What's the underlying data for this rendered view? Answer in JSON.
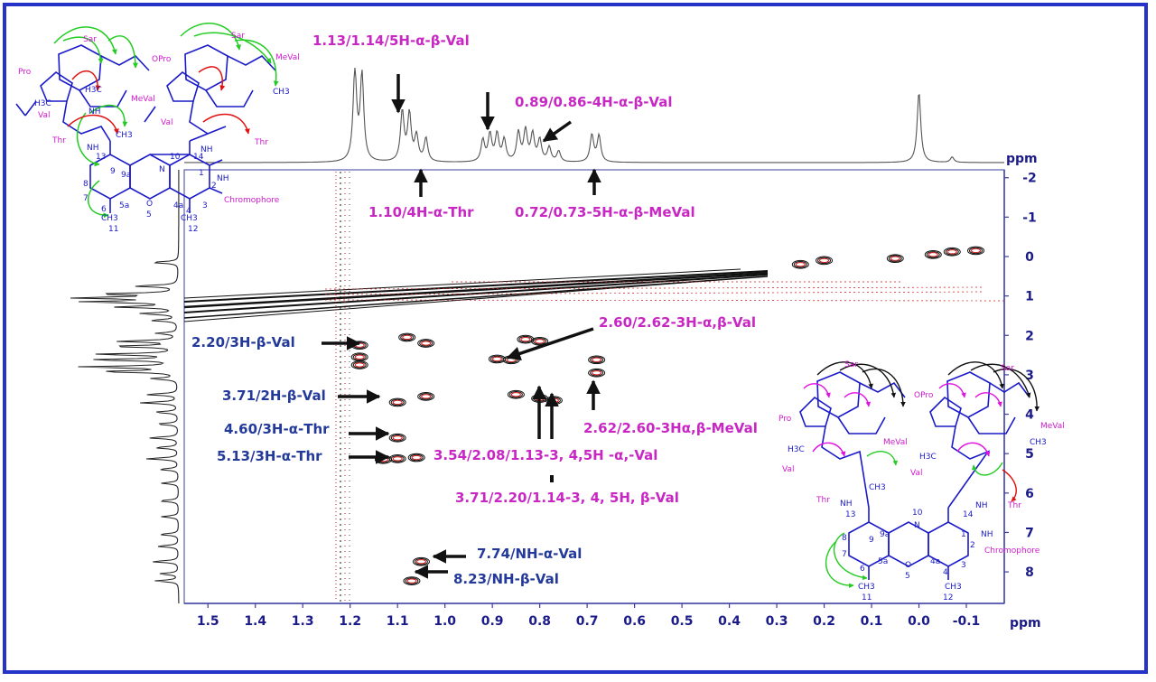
{
  "chart_data": {
    "type": "2d-nmr-contour",
    "x_unit": "ppm",
    "y_unit": "ppm",
    "x_range": [
      1.55,
      -0.18
    ],
    "y_range": [
      -2.2,
      8.8
    ],
    "x_ticks": [
      "1.5",
      "1.4",
      "1.3",
      "1.2",
      "1.1",
      "1.0",
      "0.9",
      "0.8",
      "0.7",
      "0.6",
      "0.5",
      "0.4",
      "0.3",
      "0.2",
      "0.1",
      "0.0",
      "-0.1"
    ],
    "x_tick_values": [
      1.5,
      1.4,
      1.3,
      1.2,
      1.1,
      1.0,
      0.9,
      0.8,
      0.7,
      0.6,
      0.5,
      0.4,
      0.3,
      0.2,
      0.1,
      0.0,
      -0.1
    ],
    "y_ticks": [
      "-2",
      "-1",
      "0",
      "1",
      "2",
      "3",
      "4",
      "5",
      "6",
      "7",
      "8"
    ],
    "y_tick_values": [
      -2,
      -1,
      0,
      1,
      2,
      3,
      4,
      5,
      6,
      7,
      8
    ],
    "cross_peaks": [
      {
        "x": 1.18,
        "y": 2.25
      },
      {
        "x": 1.18,
        "y": 2.55
      },
      {
        "x": 1.18,
        "y": 2.75
      },
      {
        "x": 1.1,
        "y": 3.7
      },
      {
        "x": 1.04,
        "y": 3.55
      },
      {
        "x": 1.1,
        "y": 4.6
      },
      {
        "x": 1.1,
        "y": 5.13
      },
      {
        "x": 1.06,
        "y": 5.1
      },
      {
        "x": 1.13,
        "y": 5.15
      },
      {
        "x": 1.05,
        "y": 7.74
      },
      {
        "x": 1.07,
        "y": 8.23
      },
      {
        "x": 1.08,
        "y": 2.05
      },
      {
        "x": 1.04,
        "y": 2.2
      },
      {
        "x": 0.89,
        "y": 2.6
      },
      {
        "x": 0.86,
        "y": 2.62
      },
      {
        "x": 0.85,
        "y": 3.5
      },
      {
        "x": 0.8,
        "y": 3.6
      },
      {
        "x": 0.77,
        "y": 3.65
      },
      {
        "x": 0.83,
        "y": 2.1
      },
      {
        "x": 0.8,
        "y": 2.15
      },
      {
        "x": 0.68,
        "y": 2.62
      },
      {
        "x": 0.68,
        "y": 2.95
      },
      {
        "x": 0.25,
        "y": 0.2
      },
      {
        "x": 0.2,
        "y": 0.1
      },
      {
        "x": 0.05,
        "y": 0.05
      },
      {
        "x": -0.03,
        "y": -0.05
      },
      {
        "x": -0.07,
        "y": -0.12
      },
      {
        "x": -0.12,
        "y": -0.15
      }
    ],
    "top_projection_peaks": [
      {
        "x": 1.19,
        "h": 1.0
      },
      {
        "x": 1.175,
        "h": 0.95
      },
      {
        "x": 1.09,
        "h": 0.55
      },
      {
        "x": 1.075,
        "h": 0.52
      },
      {
        "x": 1.06,
        "h": 0.28
      },
      {
        "x": 1.04,
        "h": 0.26
      },
      {
        "x": 0.92,
        "h": 0.24
      },
      {
        "x": 0.905,
        "h": 0.3
      },
      {
        "x": 0.89,
        "h": 0.3
      },
      {
        "x": 0.875,
        "h": 0.24
      },
      {
        "x": 0.845,
        "h": 0.32
      },
      {
        "x": 0.83,
        "h": 0.34
      },
      {
        "x": 0.815,
        "h": 0.3
      },
      {
        "x": 0.8,
        "h": 0.24
      },
      {
        "x": 0.78,
        "h": 0.16
      },
      {
        "x": 0.76,
        "h": 0.12
      },
      {
        "x": 0.69,
        "h": 0.3
      },
      {
        "x": 0.675,
        "h": 0.29
      },
      {
        "x": 0.0,
        "h": 0.78
      },
      {
        "x": -0.07,
        "h": 0.06
      }
    ],
    "left_projection_peaks": [
      {
        "y": 0.15,
        "h": 0.25
      },
      {
        "y": 0.75,
        "h": 0.4
      },
      {
        "y": 0.95,
        "h": 0.7
      },
      {
        "y": 1.05,
        "h": 0.95
      },
      {
        "y": 1.15,
        "h": 0.85
      },
      {
        "y": 1.28,
        "h": 0.55
      },
      {
        "y": 1.45,
        "h": 0.35
      },
      {
        "y": 1.62,
        "h": 0.25
      },
      {
        "y": 1.95,
        "h": 0.2
      },
      {
        "y": 2.15,
        "h": 0.55
      },
      {
        "y": 2.28,
        "h": 0.6
      },
      {
        "y": 2.48,
        "h": 0.75
      },
      {
        "y": 2.62,
        "h": 0.8
      },
      {
        "y": 2.8,
        "h": 0.9
      },
      {
        "y": 2.92,
        "h": 0.7
      },
      {
        "y": 3.1,
        "h": 0.25
      },
      {
        "y": 3.5,
        "h": 0.3
      },
      {
        "y": 3.71,
        "h": 0.35
      },
      {
        "y": 3.95,
        "h": 0.22
      },
      {
        "y": 4.25,
        "h": 0.2
      },
      {
        "y": 4.6,
        "h": 0.28
      },
      {
        "y": 4.85,
        "h": 0.22
      },
      {
        "y": 5.13,
        "h": 0.3
      },
      {
        "y": 5.4,
        "h": 0.18
      },
      {
        "y": 5.75,
        "h": 0.16
      },
      {
        "y": 6.2,
        "h": 0.18
      },
      {
        "y": 6.6,
        "h": 0.16
      },
      {
        "y": 7.05,
        "h": 0.18
      },
      {
        "y": 7.35,
        "h": 0.2
      },
      {
        "y": 7.74,
        "h": 0.25
      },
      {
        "y": 8.05,
        "h": 0.18
      },
      {
        "y": 8.23,
        "h": 0.22
      }
    ],
    "annotations": [
      {
        "text": "1.13/1.14/5H-α-β-Val",
        "color": "magenta"
      },
      {
        "text": "0.89/0.86-4H-α-β-Val",
        "color": "magenta"
      },
      {
        "text": "1.10/4H-α-Thr",
        "color": "magenta"
      },
      {
        "text": "0.72/0.73-5H-α-β-MeVal",
        "color": "magenta"
      },
      {
        "text": "2.60/2.62-3H-α,β-Val",
        "color": "magenta"
      },
      {
        "text": "2.20/3H-β-Val",
        "color": "blue"
      },
      {
        "text": "3.71/2H-β-Val",
        "color": "blue"
      },
      {
        "text": "4.60/3H-α-Thr",
        "color": "blue"
      },
      {
        "text": "5.13/3H-α-Thr",
        "color": "blue"
      },
      {
        "text": "2.62/2.60-3Hα,β-MeVal",
        "color": "magenta"
      },
      {
        "text": "3.54/2.08/1.13-3, 4,5H -α,-Val",
        "color": "magenta"
      },
      {
        "text": "3.71/2.20/1.14-3, 4, 5H, β-Val",
        "color": "magenta"
      },
      {
        "text": "7.74/NH-α-Val",
        "color": "blue"
      },
      {
        "text": "8.23/NH-β-Val",
        "color": "blue"
      }
    ]
  },
  "molecule_labels": {
    "pro": "Pro",
    "opro": "OPro",
    "sar": "Sar",
    "meval": "MeVal",
    "val": "Val",
    "thr": "Thr",
    "chromophore": "Chromophore",
    "nh": "NH",
    "nh2": "NH",
    "h3c": "H3C",
    "ch3": "CH3",
    "o": "O",
    "n": "N",
    "n10": "10",
    "n13": "13",
    "n14": "14",
    "n9": "9",
    "n9a": "9a",
    "n1": "1",
    "n2": "2",
    "n3": "3",
    "n4": "4",
    "n4a": "4a",
    "n5": "5",
    "n5a": "5a",
    "n6": "6",
    "n7": "7",
    "n8": "8",
    "n11": "11",
    "n12": "12"
  },
  "colors": {
    "frame": "#2533c9",
    "axis": "#5a5fb0",
    "tick": "#1b1b8a",
    "magenta_label": "#c827c4",
    "blue_label": "#243a9a",
    "contour_black": "#111111",
    "contour_red": "#d01818",
    "molecule_blue": "#1a1ac8",
    "arrow_red": "#e01010",
    "arrow_green": "#22cc22",
    "arrow_magenta": "#e010e0"
  }
}
